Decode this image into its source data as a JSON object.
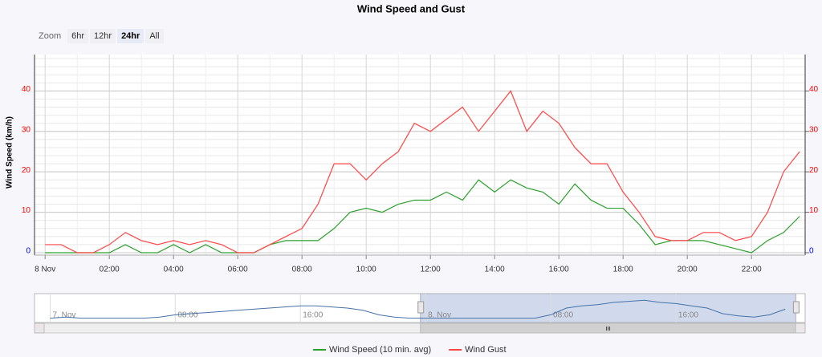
{
  "chart_data": {
    "type": "line",
    "title": "Wind Speed and Gust",
    "y_label": "Wind Speed (km/h)",
    "x": [
      0,
      0.5,
      1,
      1.5,
      2,
      2.5,
      3,
      3.5,
      4,
      4.5,
      5,
      5.5,
      6,
      6.5,
      7,
      7.5,
      8,
      8.5,
      9,
      9.5,
      10,
      10.5,
      11,
      11.5,
      12,
      12.5,
      13,
      13.5,
      14,
      14.5,
      15,
      15.5,
      16,
      16.5,
      17,
      17.5,
      18,
      18.5,
      19,
      19.5,
      20,
      20.5,
      21,
      21.5,
      22,
      22.5,
      23,
      23.5
    ],
    "series": [
      {
        "name": "Wind Speed (10 min. avg)",
        "color": "#2ca02c",
        "values": [
          0,
          0,
          0,
          0,
          0,
          2,
          0,
          0,
          2,
          0,
          2,
          0,
          0,
          0,
          2,
          3,
          3,
          3,
          6,
          10,
          11,
          10,
          12,
          13,
          13,
          15,
          13,
          18,
          15,
          18,
          16,
          15,
          12,
          17,
          13,
          11,
          11,
          7,
          2,
          3,
          3,
          3,
          2,
          1,
          0,
          3,
          5,
          9
        ]
      },
      {
        "name": "Wind Gust",
        "color": "#ff4444",
        "values": [
          2,
          2,
          0,
          0,
          2,
          5,
          3,
          2,
          3,
          2,
          3,
          2,
          0,
          0,
          2,
          4,
          6,
          12,
          22,
          22,
          18,
          22,
          25,
          32,
          30,
          33,
          36,
          30,
          35,
          40,
          30,
          35,
          32,
          26,
          22,
          22,
          15,
          10,
          4,
          3,
          3,
          5,
          5,
          3,
          4,
          10,
          20,
          25
        ]
      }
    ],
    "xlim": [
      -0.33,
      23.67
    ],
    "xticks": [
      {
        "value": 0,
        "label": "8 Nov"
      },
      {
        "value": 2,
        "label": "02:00"
      },
      {
        "value": 4,
        "label": "04:00"
      },
      {
        "value": 6,
        "label": "06:00"
      },
      {
        "value": 8,
        "label": "08:00"
      },
      {
        "value": 10,
        "label": "10:00"
      },
      {
        "value": 12,
        "label": "12:00"
      },
      {
        "value": 14,
        "label": "14:00"
      },
      {
        "value": 16,
        "label": "16:00"
      },
      {
        "value": 18,
        "label": "18:00"
      },
      {
        "value": 20,
        "label": "20:00"
      },
      {
        "value": 22,
        "label": "22:00"
      }
    ],
    "ylim": [
      0,
      49
    ],
    "yticks": [
      0,
      10,
      20,
      30,
      40
    ],
    "y2lim": [
      0,
      49
    ],
    "y2ticks": [
      0,
      10,
      20,
      30,
      40
    ],
    "ytick_colors": [
      "#0000ff",
      "#ff0000",
      "#ff0000",
      "#ff0000",
      "#ff0000"
    ],
    "grid": true,
    "navigator": {
      "color": "#4572a7",
      "x": [
        -24,
        -23,
        -22,
        -21,
        -20,
        -19,
        -18,
        -17,
        -16,
        -15,
        -14,
        -13,
        -12,
        -11,
        -10,
        -9,
        -8,
        -7,
        -6,
        -5,
        -4,
        -3,
        -2,
        -1,
        0,
        1,
        2,
        3,
        4,
        5,
        6,
        7,
        8,
        9,
        10,
        11,
        12,
        13,
        14,
        15,
        16,
        17,
        18,
        19,
        20,
        21,
        22,
        23
      ],
      "values": [
        1,
        2,
        1,
        1,
        1,
        1,
        1,
        2,
        4,
        5,
        6,
        7,
        8,
        9,
        10,
        11,
        12,
        12,
        11,
        10,
        8,
        4,
        2,
        1,
        1,
        1,
        1,
        1,
        1,
        1,
        1,
        1,
        4,
        10,
        12,
        13,
        15,
        16,
        17,
        15,
        14,
        12,
        10,
        5,
        3,
        2,
        4,
        9
      ],
      "xlim": [
        -25,
        23.6
      ],
      "ylim": [
        0,
        20
      ],
      "xticks": [
        {
          "value": -24,
          "label": "7. Nov"
        },
        {
          "value": -16,
          "label": "08:00"
        },
        {
          "value": -8,
          "label": "16:00"
        },
        {
          "value": 0,
          "label": "8. Nov"
        },
        {
          "value": 8,
          "label": "08:00"
        },
        {
          "value": 16,
          "label": "16:00"
        }
      ]
    }
  },
  "zoom": {
    "label": "Zoom",
    "buttons": [
      "6hr",
      "12hr",
      "24hr",
      "All"
    ],
    "selected": 2
  }
}
